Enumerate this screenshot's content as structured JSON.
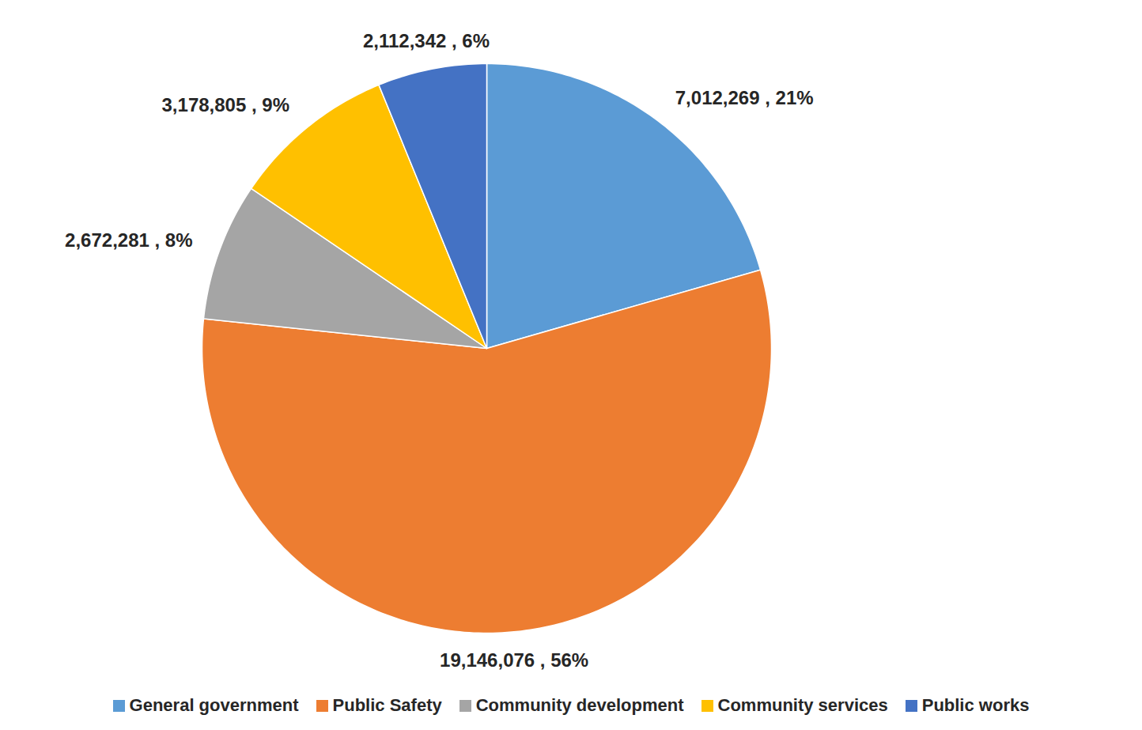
{
  "chart_data": {
    "type": "pie",
    "categories": [
      "General government",
      "Public Safety",
      "Community development",
      "Community services",
      "Public works"
    ],
    "values": [
      7012269,
      19146076,
      2672281,
      3178805,
      2112342
    ],
    "value_labels": [
      "7,012,269 , 21%",
      "19,146,076 , 56%",
      "2,672,281 , 8%",
      "3,178,805 , 9%",
      "2,112,342 , 6%"
    ],
    "colors": [
      "#5b9bd5",
      "#ed7d31",
      "#a5a5a5",
      "#ffc000",
      "#4472c4"
    ],
    "data_labels": true,
    "legend": "bottom"
  }
}
